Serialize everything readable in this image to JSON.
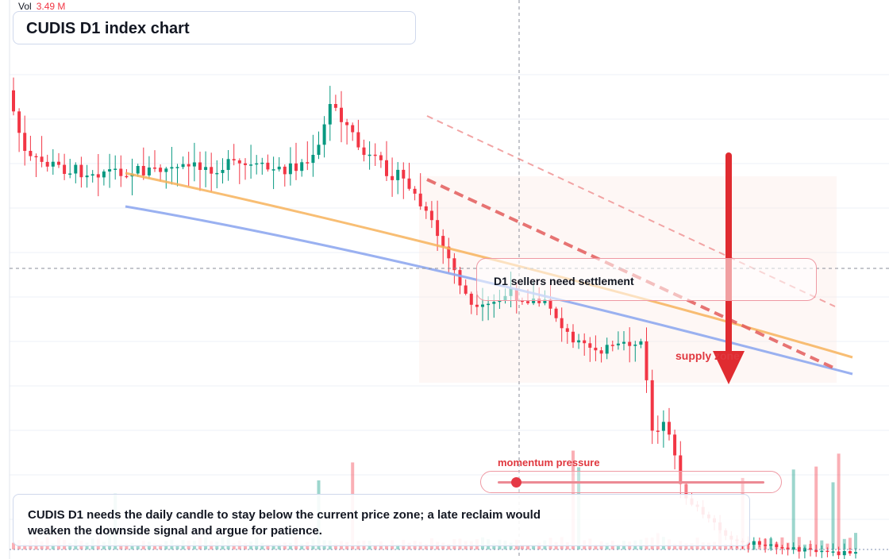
{
  "chart_data": {
    "type": "candlestick",
    "title": "CUDIS D1 index chart",
    "timeframe": "D1",
    "volume_legend": {
      "label": "Vol",
      "value": "3.49 M"
    },
    "annotations": {
      "signal_text": "D1 sellers need settlement",
      "zone_text": "supply zone",
      "momentum_text": "momentum pressure",
      "momentum_level": 0.07,
      "note_text": "CUDIS D1 needs the daily candle to stay below the current price zone; a late reclaim would weaken the downside signal and argue for patience."
    },
    "y_axis_labels": "not shown",
    "candle_count": 150
  },
  "colors": {
    "up": "#089981",
    "down": "#f23645",
    "ma_fast": "#f7b35c",
    "ma_slow": "#8fa9ef",
    "trend": "#e35c5c",
    "arrow": "#e02b30",
    "zone": "#fde9e3"
  }
}
